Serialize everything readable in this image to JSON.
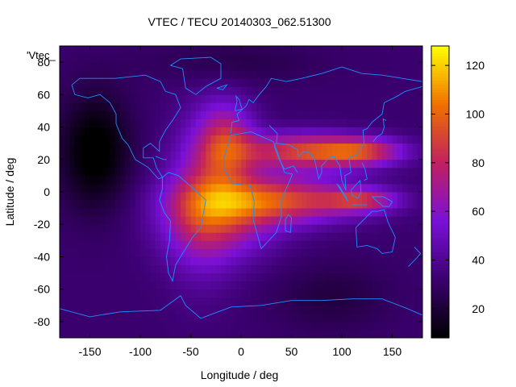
{
  "chart_data": {
    "type": "heatmap",
    "title": "VTEC / TECU 20140303_062.51300",
    "xlabel": "Longitude / deg",
    "ylabel": "Latitude / deg",
    "xlim": [
      -180,
      180
    ],
    "ylim": [
      -90,
      90
    ],
    "x_ticks": [
      -150,
      -100,
      -50,
      0,
      50,
      100,
      150
    ],
    "y_ticks": [
      -80,
      -60,
      -40,
      -20,
      0,
      20,
      40,
      60,
      80
    ],
    "colorbar": {
      "range": [
        8,
        128
      ],
      "ticks": [
        20,
        40,
        60,
        80,
        100,
        120
      ]
    },
    "key_label": "'Vtec_",
    "colormap": [
      "#000000",
      "#3a006e",
      "#7a10d8",
      "#c02060",
      "#f07000",
      "#ffff00"
    ],
    "coastline_color": "#1e90ff",
    "field": {
      "background_tecu": 32,
      "features": [
        {
          "lon": -15,
          "lat": 30,
          "amp": 45,
          "sx": 20,
          "sy": 18
        },
        {
          "lon": 60,
          "lat": 25,
          "amp": 55,
          "sx": 45,
          "sy": 8
        },
        {
          "lon": 120,
          "lat": 25,
          "amp": 45,
          "sx": 30,
          "sy": 6
        },
        {
          "lon": 40,
          "lat": -5,
          "amp": 55,
          "sx": 55,
          "sy": 10
        },
        {
          "lon": 120,
          "lat": -5,
          "amp": 40,
          "sx": 25,
          "sy": 5
        },
        {
          "lon": -20,
          "lat": -15,
          "amp": 40,
          "sx": 40,
          "sy": 18
        },
        {
          "lon": -40,
          "lat": -5,
          "amp": 25,
          "sx": 25,
          "sy": 35
        },
        {
          "lon": -145,
          "lat": 25,
          "amp": -28,
          "sx": 25,
          "sy": 25
        },
        {
          "lon": -10,
          "lat": 80,
          "amp": -8,
          "sx": 60,
          "sy": 10
        },
        {
          "lon": 90,
          "lat": -65,
          "amp": -10,
          "sx": 40,
          "sy": 15
        }
      ]
    }
  }
}
